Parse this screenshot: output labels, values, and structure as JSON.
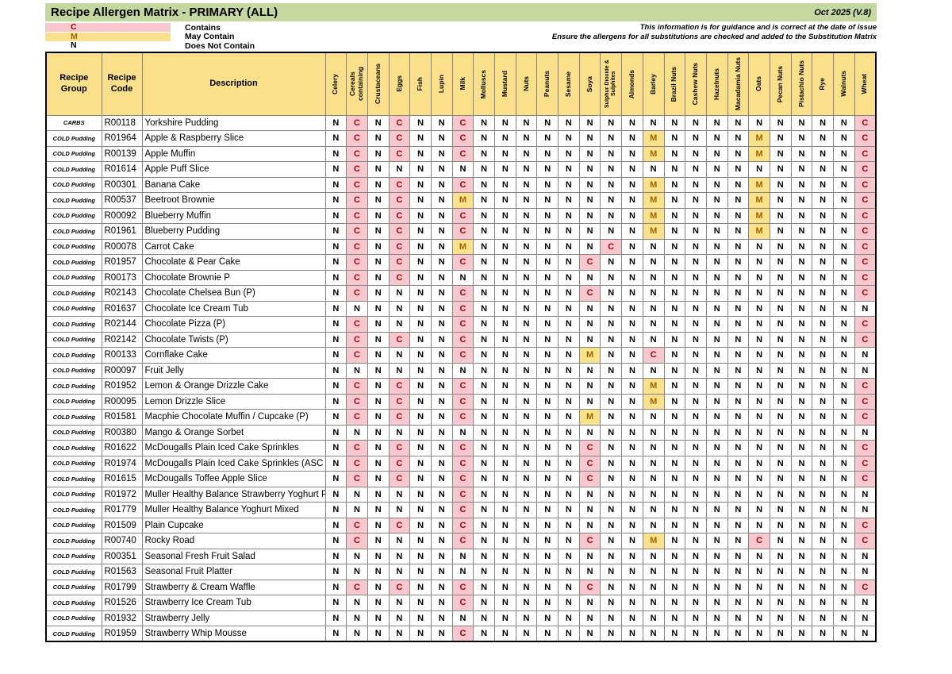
{
  "title": "Recipe Allergen Matrix - PRIMARY (ALL)",
  "version": "Oct 2025 (V.8)",
  "notice": {
    "line1": "This information is for guidance and is correct at the date of issue",
    "line2": "Ensure the allergens for all substitutions are checked and added to the Substitution Matrix"
  },
  "legend": [
    {
      "symbol": "C",
      "label": "Contains",
      "swatch_color": "#f9c8ce",
      "symbol_color": "#9c0006"
    },
    {
      "symbol": "M",
      "label": "May Contain",
      "swatch_color": "#fae28c",
      "symbol_color": "#9c6500"
    },
    {
      "symbol": "N",
      "label": "Does Not Contain",
      "swatch_color": "transparent",
      "symbol_color": "#000000"
    }
  ],
  "columns": {
    "recipe_group": "Recipe Group",
    "recipe_code": "Recipe Code",
    "description": "Description"
  },
  "allergens": [
    "Celery",
    "Cereals containing",
    "Crustaceans",
    "Eggs",
    "Fish",
    "Lupin",
    "Milk",
    "Molluscs",
    "Mustard",
    "Nuts",
    "Peanuts",
    "Sesame",
    "Soya",
    "Sulphur Dioxide & Sulphites",
    "Almonds",
    "Barley",
    "Brazil Nuts",
    "Cashew Nuts",
    "Hazelnuts",
    "Macadamia Nuts",
    "Oats",
    "Pecan Nuts",
    "Pistachio Nuts",
    "Rye",
    "Walnuts",
    "Wheat"
  ],
  "value_colors": {
    "C": {
      "bg": "#f9c8ce",
      "text": "#9c0006"
    },
    "M": {
      "bg": "#fae28c",
      "text": "#9c6500"
    },
    "N": {
      "bg": "#ffffff",
      "text": "#000000"
    }
  },
  "rows": [
    {
      "group": "CARBS",
      "code": "R00118",
      "description": "Yorkshire Pudding",
      "values": "NCNCNNCNNNNNNNNNNNNNNNNNNC"
    },
    {
      "group": "COLD Pudding",
      "code": "R01964",
      "description": "Apple & Raspberry Slice",
      "values": "NCNCNNCNNNNNNNNMNNNNMNNNNC"
    },
    {
      "group": "COLD Pudding",
      "code": "R00139",
      "description": "Apple Muffin",
      "values": "NCNCNNCNNNNNNNNMNNNNMNNNNC"
    },
    {
      "group": "COLD Pudding",
      "code": "R01614",
      "description": "Apple Puff Slice",
      "values": "NCNNNNNNNNNNNNNNNNNNNNNNNC"
    },
    {
      "group": "COLD Pudding",
      "code": "R00301",
      "description": "Banana Cake",
      "values": "NCNCNNCNNNNNNNNMNNNNMNNNNC"
    },
    {
      "group": "COLD Pudding",
      "code": "R00537",
      "description": "Beetroot Brownie",
      "values": "NCNCNNMNNNNNNNNMNNNNMNNNNC"
    },
    {
      "group": "COLD Pudding",
      "code": "R00092",
      "description": "Blueberry Muffin",
      "values": "NCNCNNCNNNNNNNNMNNNNMNNNNC"
    },
    {
      "group": "COLD Pudding",
      "code": "R01961",
      "description": "Blueberry Pudding",
      "values": "NCNCNNCNNNNNNNNMNNNNMNNNNC"
    },
    {
      "group": "COLD Pudding",
      "code": "R00078",
      "description": "Carrot Cake",
      "values": "NCNCNNMNNNNNNCNNNNNNNNNNNC"
    },
    {
      "group": "COLD Pudding",
      "code": "R01957",
      "description": "Chocolate & Pear Cake",
      "values": "NCNCNNCNNNNNCNNNNNNNNNNNNC"
    },
    {
      "group": "COLD Pudding",
      "code": "R00173",
      "description": "Chocolate Brownie P",
      "values": "NCNCNNNNNNNNNNNNNNNNNNNNNC"
    },
    {
      "group": "COLD Pudding",
      "code": "R02143",
      "description": "Chocolate Chelsea Bun (P)",
      "values": "NCNNNNCNNNNNCNNNNNNNNNNNNC"
    },
    {
      "group": "COLD Pudding",
      "code": "R01637",
      "description": "Chocolate Ice Cream Tub",
      "values": "NNNNNNCNNNNNNNNNNNNNNNNNNN"
    },
    {
      "group": "COLD Pudding",
      "code": "R02144",
      "description": "Chocolate Pizza (P)",
      "values": "NCNNNNCNNNNNNNNNNNNNNNNNNC"
    },
    {
      "group": "COLD Pudding",
      "code": "R02142",
      "description": "Chocolate Twists (P)",
      "values": "NCNCNNCNNNNNNNNNNNNNNNNNNC"
    },
    {
      "group": "COLD Pudding",
      "code": "R00133",
      "description": "Cornflake Cake",
      "values": "NCNNNNCNNNNNMNNCNNNNNNNNNN"
    },
    {
      "group": "COLD Pudding",
      "code": "R00097",
      "description": "Fruit Jelly",
      "values": "NNNNNNNNNNNNNNNNNNNNNNNNNN"
    },
    {
      "group": "COLD Pudding",
      "code": "R01952",
      "description": "Lemon & Orange Drizzle Cake",
      "values": "NCNCNNCNNNNNNNNMNNNNNNNNNC"
    },
    {
      "group": "COLD Pudding",
      "code": "R00095",
      "description": "Lemon Drizzle Slice",
      "values": "NCNCNNCNNNNNNNNMNNNNNNNNNC"
    },
    {
      "group": "COLD Pudding",
      "code": "R01581",
      "description": "Macphie Chocolate Muffin / Cupcake (P)",
      "values": "NCNCNNCNNNNNMNNNNNNNNNNNNC"
    },
    {
      "group": "COLD Pudding",
      "code": "R00380",
      "description": "Mango & Orange Sorbet",
      "values": "NNNNNNNNNNNNNNNNNNNNNNNNNN"
    },
    {
      "group": "COLD Pudding",
      "code": "R01622",
      "description": "McDougalls Plain Iced Cake Sprinkles",
      "values": "NCNCNNCNNNNNCNNNNNNNNNNNNC"
    },
    {
      "group": "COLD Pudding",
      "code": "R01974",
      "description": "McDougalls Plain Iced Cake Sprinkles (ASC",
      "values": "NCNCNNCNNNNNCNNNNNNNNNNNNC"
    },
    {
      "group": "COLD Pudding",
      "code": "R01615",
      "description": "McDougalls Toffee Apple Slice",
      "values": "NCNCNNCNNNNNCNNNNNNNNNNNNC"
    },
    {
      "group": "COLD Pudding",
      "code": "R01972",
      "description": "Muller Healthy Balance Strawberry Yoghurt P",
      "values": "NNNNNNCNNNNNNNNNNNNNNNNNNN"
    },
    {
      "group": "COLD Pudding",
      "code": "R01779",
      "description": "Muller Healthy Balance Yoghurt Mixed",
      "values": "NNNNNNCNNNNNNNNNNNNNNNNNNN"
    },
    {
      "group": "COLD Pudding",
      "code": "R01509",
      "description": "Plain Cupcake",
      "values": "NCNCNNCNNNNNNNNNNNNNNNNNNC"
    },
    {
      "group": "COLD Pudding",
      "code": "R00740",
      "description": "Rocky Road",
      "values": "NCNNNNCNNNNNCNNMNNNNCNNNNC"
    },
    {
      "group": "COLD Pudding",
      "code": "R00351",
      "description": "Seasonal Fresh Fruit Salad",
      "values": "NNNNNNNNNNNNNNNNNNNNNNNNNN"
    },
    {
      "group": "COLD Pudding",
      "code": "R01563",
      "description": "Seasonal Fruit Platter",
      "values": "NNNNNNNNNNNNNNNNNNNNNNNNNN"
    },
    {
      "group": "COLD Pudding",
      "code": "R01799",
      "description": "Strawberry & Cream Waffle",
      "values": "NCNCNNCNNNNNCNNNNNNNNNNNNC"
    },
    {
      "group": "COLD Pudding",
      "code": "R01526",
      "description": "Strawberry Ice Cream Tub",
      "values": "NNNNNNCNNNNNNNNNNNNNNNNNNN"
    },
    {
      "group": "COLD Pudding",
      "code": "R01932",
      "description": "Strawberry Jelly",
      "values": "NNNNNNNNNNNNNNNNNNNNNNNNNN"
    },
    {
      "group": "COLD Pudding",
      "code": "R01959",
      "description": "Strawberry Whip Mousse",
      "values": "NNNNNNCNNNNNNNNNNNNNNNNNNN"
    }
  ]
}
